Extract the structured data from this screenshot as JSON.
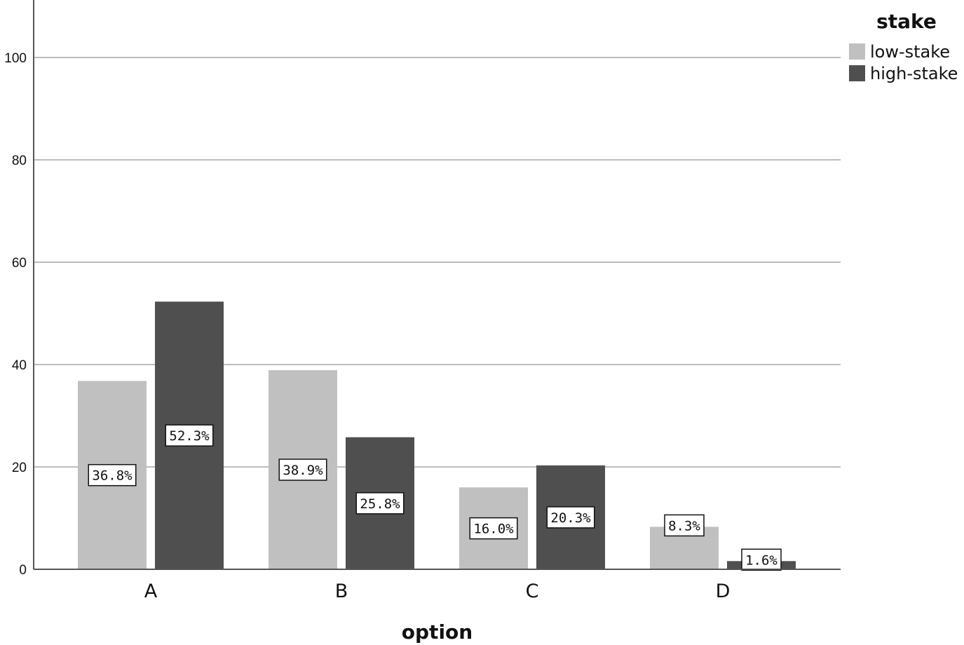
{
  "chart_data": {
    "type": "bar",
    "categories": [
      "A",
      "B",
      "C",
      "D"
    ],
    "series": [
      {
        "name": "low-stake",
        "color": "#c0c0c0",
        "values": [
          36.8,
          38.9,
          16.0,
          8.3
        ],
        "labels": [
          "36.8%",
          "38.9%",
          "16.0%",
          "8.3%"
        ]
      },
      {
        "name": "high-stake",
        "color": "#4f4f4f",
        "values": [
          52.3,
          25.8,
          20.3,
          1.6
        ],
        "labels": [
          "52.3%",
          "25.8%",
          "20.3%",
          "1.6%"
        ]
      }
    ],
    "title": "",
    "xlabel": "option",
    "ylabel": "",
    "ylim": [
      0,
      110
    ],
    "yticks": [
      0,
      20,
      40,
      60,
      80,
      100
    ],
    "grid": true,
    "legend": {
      "title": "stake",
      "placement": "top-right"
    }
  }
}
